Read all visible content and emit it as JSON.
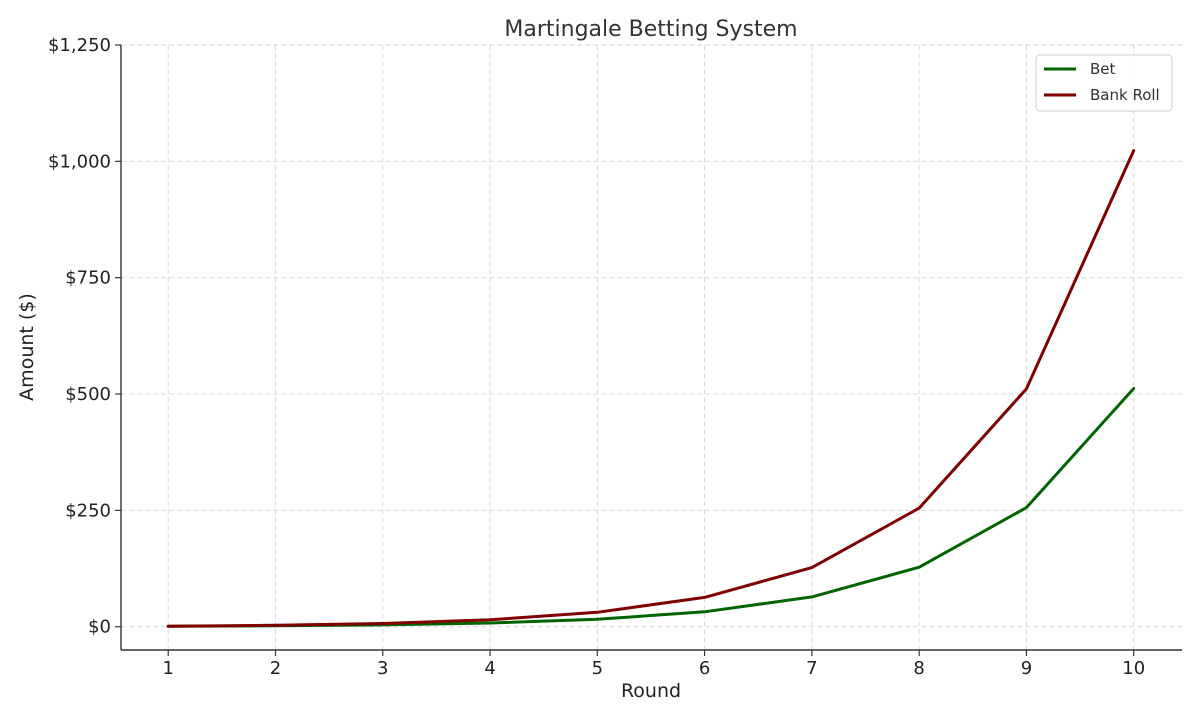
{
  "chart_data": {
    "type": "line",
    "title": "Martingale Betting System",
    "xlabel": "Round",
    "ylabel": "Amount ($)",
    "x": [
      1,
      2,
      3,
      4,
      5,
      6,
      7,
      8,
      9,
      10
    ],
    "x_tick_labels": [
      "1",
      "2",
      "3",
      "4",
      "5",
      "6",
      "7",
      "8",
      "9",
      "10"
    ],
    "xlim": [
      0.56,
      10.45
    ],
    "ylim": [
      -50,
      1250
    ],
    "y_ticks": [
      0,
      250,
      500,
      750,
      1000,
      1250
    ],
    "y_tick_labels": [
      "$0",
      "$250",
      "$500",
      "$750",
      "$1,000",
      "$1,250"
    ],
    "grid": true,
    "legend_position": "top-right",
    "series": [
      {
        "name": "Bet",
        "color": "#006400",
        "values": [
          1,
          2,
          4,
          8,
          16,
          32,
          64,
          128,
          256,
          512
        ]
      },
      {
        "name": "Bank Roll",
        "color": "#800000",
        "values": [
          1,
          3,
          7,
          15,
          31,
          63,
          127,
          255,
          511,
          1023
        ]
      }
    ]
  }
}
